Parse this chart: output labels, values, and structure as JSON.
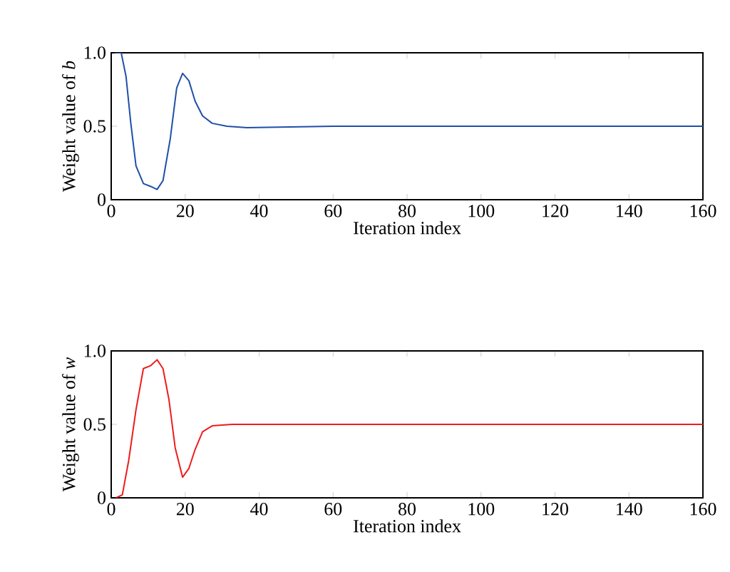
{
  "chart_data": [
    {
      "type": "line",
      "xlabel": "Iteration index",
      "ylabel": "Weight value of *b*",
      "xlim": [
        0,
        160
      ],
      "xticks": [
        0,
        20,
        40,
        60,
        80,
        100,
        120,
        140,
        160
      ],
      "ylim": [
        0,
        1
      ],
      "yticks": [
        0,
        0.5,
        {
          "value": 1,
          "label": "1.0"
        }
      ],
      "series": [
        {
          "color": "#1f4fa8",
          "x": [
            1,
            2.7,
            4,
            5.3,
            6.7,
            8.7,
            10.7,
            12.4,
            14,
            16,
            17.7,
            19.3,
            21,
            22.7,
            24.7,
            27.3,
            31.3,
            36.7,
            60,
            100,
            160
          ],
          "values": [
            1.0,
            1.0,
            0.84,
            0.52,
            0.23,
            0.11,
            0.09,
            0.07,
            0.13,
            0.42,
            0.76,
            0.86,
            0.81,
            0.67,
            0.57,
            0.52,
            0.5,
            0.49,
            0.5,
            0.5,
            0.5
          ]
        }
      ]
    },
    {
      "type": "line",
      "xlabel": "Iteration index",
      "ylabel": "Weight value of *w*",
      "xlim": [
        0,
        160
      ],
      "xticks": [
        0,
        20,
        40,
        60,
        80,
        100,
        120,
        140,
        160
      ],
      "ylim": [
        0,
        1
      ],
      "yticks": [
        0,
        0.5,
        {
          "value": 1,
          "label": "1.0"
        }
      ],
      "series": [
        {
          "color": "#ee1c1c",
          "x": [
            1.3,
            3,
            4.7,
            6.7,
            8.7,
            10.7,
            12.4,
            14,
            15.6,
            17.3,
            19.3,
            21,
            22.7,
            24.7,
            27.3,
            32.7,
            60,
            100,
            160
          ],
          "values": [
            0.0,
            0.02,
            0.25,
            0.6,
            0.88,
            0.9,
            0.94,
            0.88,
            0.67,
            0.34,
            0.14,
            0.2,
            0.33,
            0.45,
            0.49,
            0.5,
            0.5,
            0.5,
            0.5
          ]
        }
      ]
    }
  ]
}
